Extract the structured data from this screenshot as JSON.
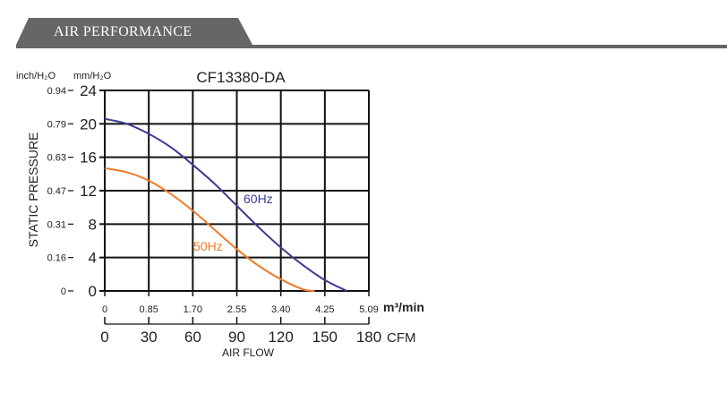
{
  "header": {
    "title": "AIR PERFORMANCE"
  },
  "colors": {
    "banner": "#666666",
    "series_60hz": "#3b3b96",
    "series_50hz": "#f07a2a",
    "grid": "#111111"
  },
  "chart_data": {
    "type": "line",
    "title": "CF13380-DA",
    "ylabel": "STATIC PRESSURE",
    "xlabel": "AIR FLOW",
    "y_unit_left": "inch/H₂O",
    "y_unit_right": "mm/H₂O",
    "x_unit_top": "m³/min",
    "x_unit_bottom": "CFM",
    "ylim": [
      0,
      24
    ],
    "xlim": [
      0,
      180
    ],
    "grid": true,
    "y_ticks_mm": [
      "0",
      "4",
      "8",
      "12",
      "16",
      "20",
      "24"
    ],
    "y_ticks_inch": [
      "0",
      "0.16",
      "0.31",
      "0.47",
      "0.63",
      "0.79",
      "0.94"
    ],
    "x_ticks_m3": [
      "0",
      "0.85",
      "1.70",
      "2.55",
      "3.40",
      "4.25",
      "5.09"
    ],
    "x_ticks_cfm": [
      "0",
      "30",
      "60",
      "90",
      "120",
      "150",
      "180"
    ],
    "series": [
      {
        "name": "60Hz",
        "color": "#3b3b96",
        "x": [
          0,
          15,
          30,
          45,
          60,
          75,
          90,
          105,
          120,
          135,
          150,
          165
        ],
        "y": [
          20.6,
          20.0,
          18.8,
          17.2,
          15.1,
          12.8,
          10.2,
          7.6,
          5.2,
          3.1,
          1.3,
          0
        ]
      },
      {
        "name": "50Hz",
        "color": "#f07a2a",
        "x": [
          0,
          15,
          30,
          45,
          60,
          75,
          90,
          105,
          120,
          135,
          143
        ],
        "y": [
          14.7,
          14.2,
          13.2,
          11.6,
          9.6,
          7.3,
          5.0,
          3.0,
          1.4,
          0.2,
          0
        ]
      }
    ]
  }
}
